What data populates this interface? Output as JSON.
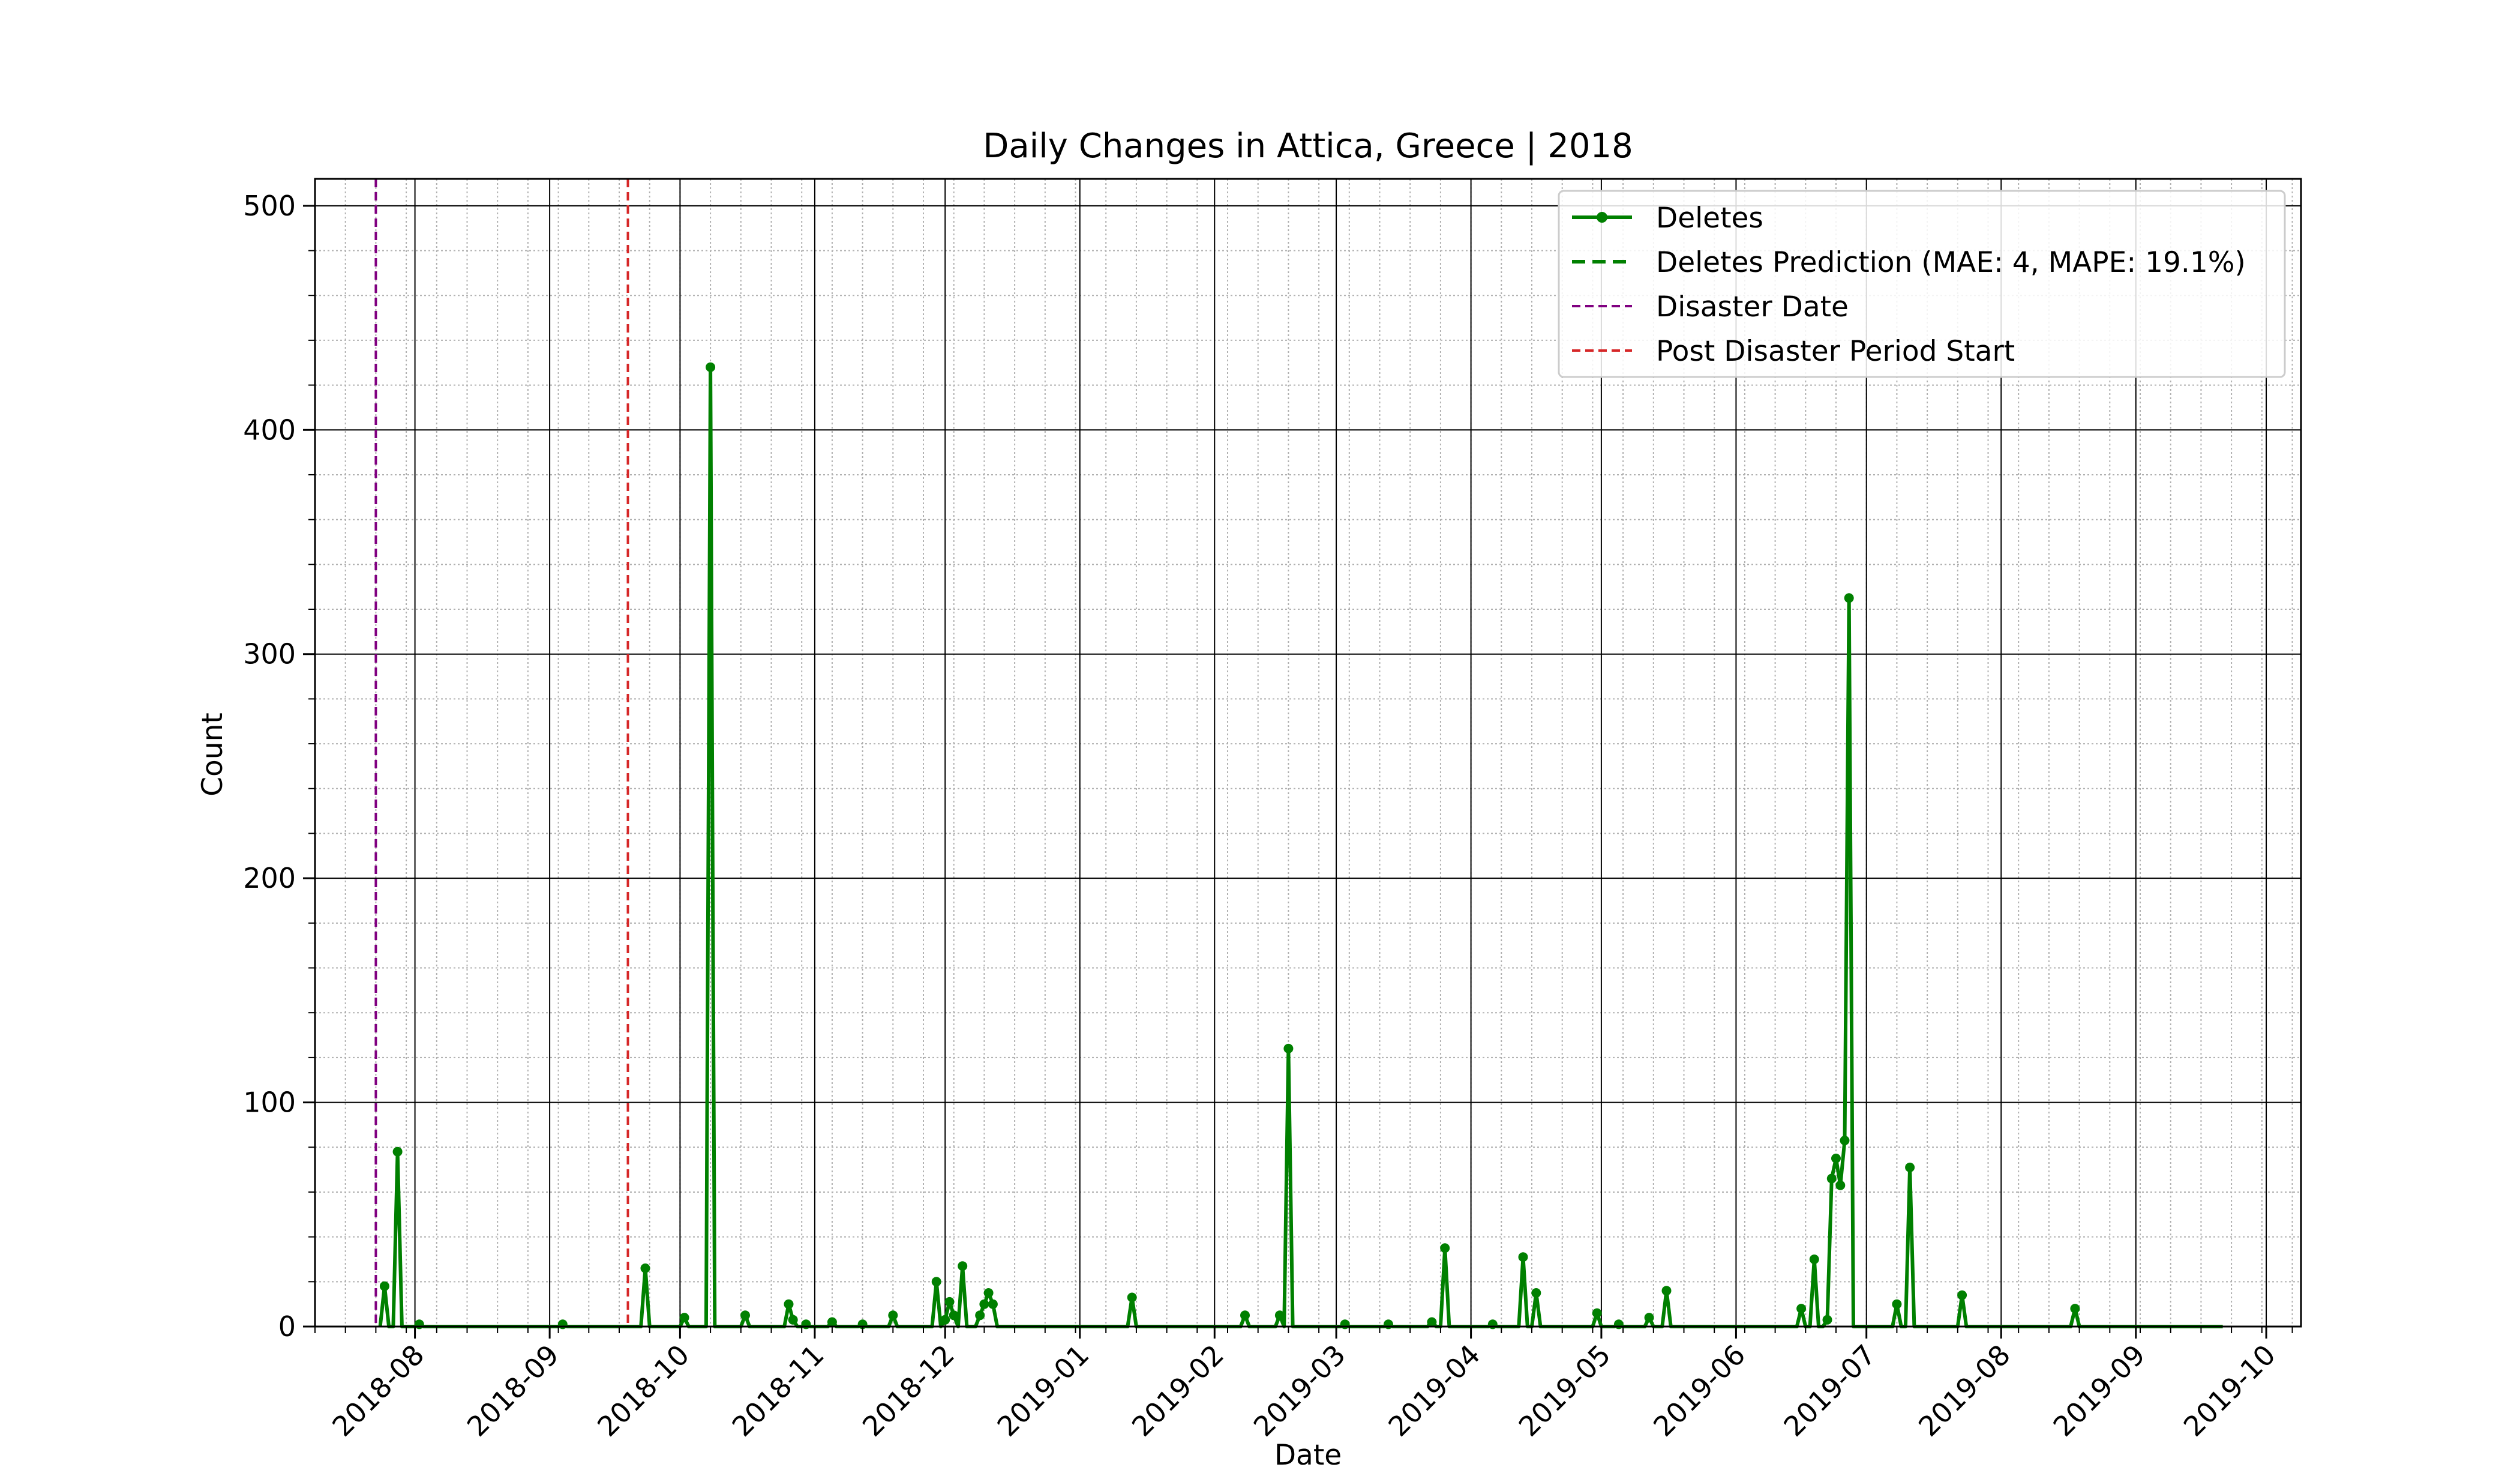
{
  "chart_data": {
    "type": "line",
    "title": "Daily Changes in Attica, Greece | 2018",
    "xlabel": "Date",
    "ylabel": "Count",
    "xlim": [
      "2018-07-09",
      "2019-10-09"
    ],
    "ylim": [
      0,
      512
    ],
    "x_ticks": [
      "2018-08",
      "2018-09",
      "2018-10",
      "2018-11",
      "2018-12",
      "2019-01",
      "2019-02",
      "2019-03",
      "2019-04",
      "2019-05",
      "2019-06",
      "2019-07",
      "2019-08",
      "2019-09",
      "2019-10"
    ],
    "y_ticks": [
      0,
      100,
      200,
      300,
      400,
      500
    ],
    "grid": true,
    "legend_position": "upper right",
    "colors": {
      "deletes": "#008000",
      "prediction": "#008000",
      "disaster": "#800080",
      "post_disaster": "#d62728"
    },
    "legend": [
      {
        "label": "Deletes",
        "style": "line-marker",
        "color": "#008000"
      },
      {
        "label": "Deletes Prediction (MAE: 4, MAPE: 19.1%)",
        "style": "dashed",
        "color": "#008000"
      },
      {
        "label": "Disaster Date",
        "style": "dashed-thin",
        "color": "#800080"
      },
      {
        "label": "Post Disaster Period Start",
        "style": "dashed-thin",
        "color": "#d62728"
      }
    ],
    "vlines": [
      {
        "name": "Disaster Date",
        "date": "2018-07-23",
        "color": "#800080"
      },
      {
        "name": "Post Disaster Period Start",
        "date": "2018-09-19",
        "color": "#d62728"
      }
    ],
    "series": [
      {
        "name": "Deletes",
        "color": "#008000",
        "start": "2018-07-24",
        "end": "2019-09-21",
        "baseline": 0,
        "points": [
          [
            "2018-07-25",
            18
          ],
          [
            "2018-07-28",
            78
          ],
          [
            "2018-08-02",
            1
          ],
          [
            "2018-09-04",
            1
          ],
          [
            "2018-09-23",
            26
          ],
          [
            "2018-10-02",
            4
          ],
          [
            "2018-10-08",
            428
          ],
          [
            "2018-10-16",
            5
          ],
          [
            "2018-10-26",
            10
          ],
          [
            "2018-10-27",
            3
          ],
          [
            "2018-10-30",
            1
          ],
          [
            "2018-11-05",
            2
          ],
          [
            "2018-11-12",
            1
          ],
          [
            "2018-11-19",
            5
          ],
          [
            "2018-11-29",
            20
          ],
          [
            "2018-12-01",
            3
          ],
          [
            "2018-12-02",
            11
          ],
          [
            "2018-12-03",
            5
          ],
          [
            "2018-12-05",
            27
          ],
          [
            "2018-12-09",
            5
          ],
          [
            "2018-12-10",
            10
          ],
          [
            "2018-12-11",
            15
          ],
          [
            "2018-12-12",
            10
          ],
          [
            "2019-01-13",
            13
          ],
          [
            "2019-02-08",
            5
          ],
          [
            "2019-02-16",
            5
          ],
          [
            "2019-02-18",
            124
          ],
          [
            "2019-03-03",
            1
          ],
          [
            "2019-03-13",
            1
          ],
          [
            "2019-03-23",
            2
          ],
          [
            "2019-03-26",
            35
          ],
          [
            "2019-04-06",
            1
          ],
          [
            "2019-04-13",
            31
          ],
          [
            "2019-04-16",
            15
          ],
          [
            "2019-04-30",
            6
          ],
          [
            "2019-05-05",
            1
          ],
          [
            "2019-05-12",
            4
          ],
          [
            "2019-05-16",
            16
          ],
          [
            "2019-06-16",
            8
          ],
          [
            "2019-06-19",
            30
          ],
          [
            "2019-06-22",
            3
          ],
          [
            "2019-06-23",
            66
          ],
          [
            "2019-06-24",
            75
          ],
          [
            "2019-06-25",
            63
          ],
          [
            "2019-06-26",
            83
          ],
          [
            "2019-06-27",
            325
          ],
          [
            "2019-07-08",
            10
          ],
          [
            "2019-07-11",
            71
          ],
          [
            "2019-07-23",
            14
          ],
          [
            "2019-08-18",
            8
          ]
        ]
      },
      {
        "name": "Deletes Prediction (MAE: 4, MAPE: 19.1%)",
        "color": "#008000",
        "points": []
      }
    ]
  }
}
